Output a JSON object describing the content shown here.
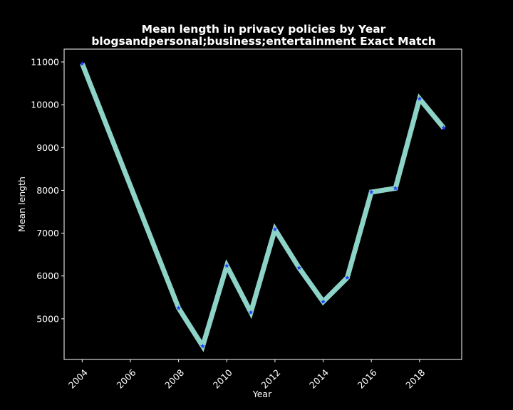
{
  "chart_data": {
    "type": "line",
    "title": [
      "Mean length in privacy policies by Year",
      "blogsandpersonal;business;entertainment Exact Match"
    ],
    "xlabel": "Year",
    "ylabel": "Mean length",
    "xlim": [
      2003.25,
      2019.75
    ],
    "ylim": [
      4050,
      11300
    ],
    "xticks": [
      2004,
      2006,
      2008,
      2010,
      2012,
      2014,
      2016,
      2018
    ],
    "yticks": [
      5000,
      6000,
      7000,
      8000,
      9000,
      10000,
      11000
    ],
    "grid": false,
    "legend": "none",
    "line_color": "#8dd3c7",
    "marker_color": "#1f3cff",
    "background": "#000000",
    "series": [
      {
        "x": [
          2004,
          2008,
          2009,
          2010,
          2011,
          2012,
          2013,
          2014,
          2015,
          2016,
          2017,
          2018,
          2019
        ],
        "y": [
          10960,
          5250,
          4360,
          6240,
          5150,
          7090,
          6190,
          5400,
          5960,
          7960,
          8050,
          10140,
          9460
        ]
      }
    ]
  }
}
